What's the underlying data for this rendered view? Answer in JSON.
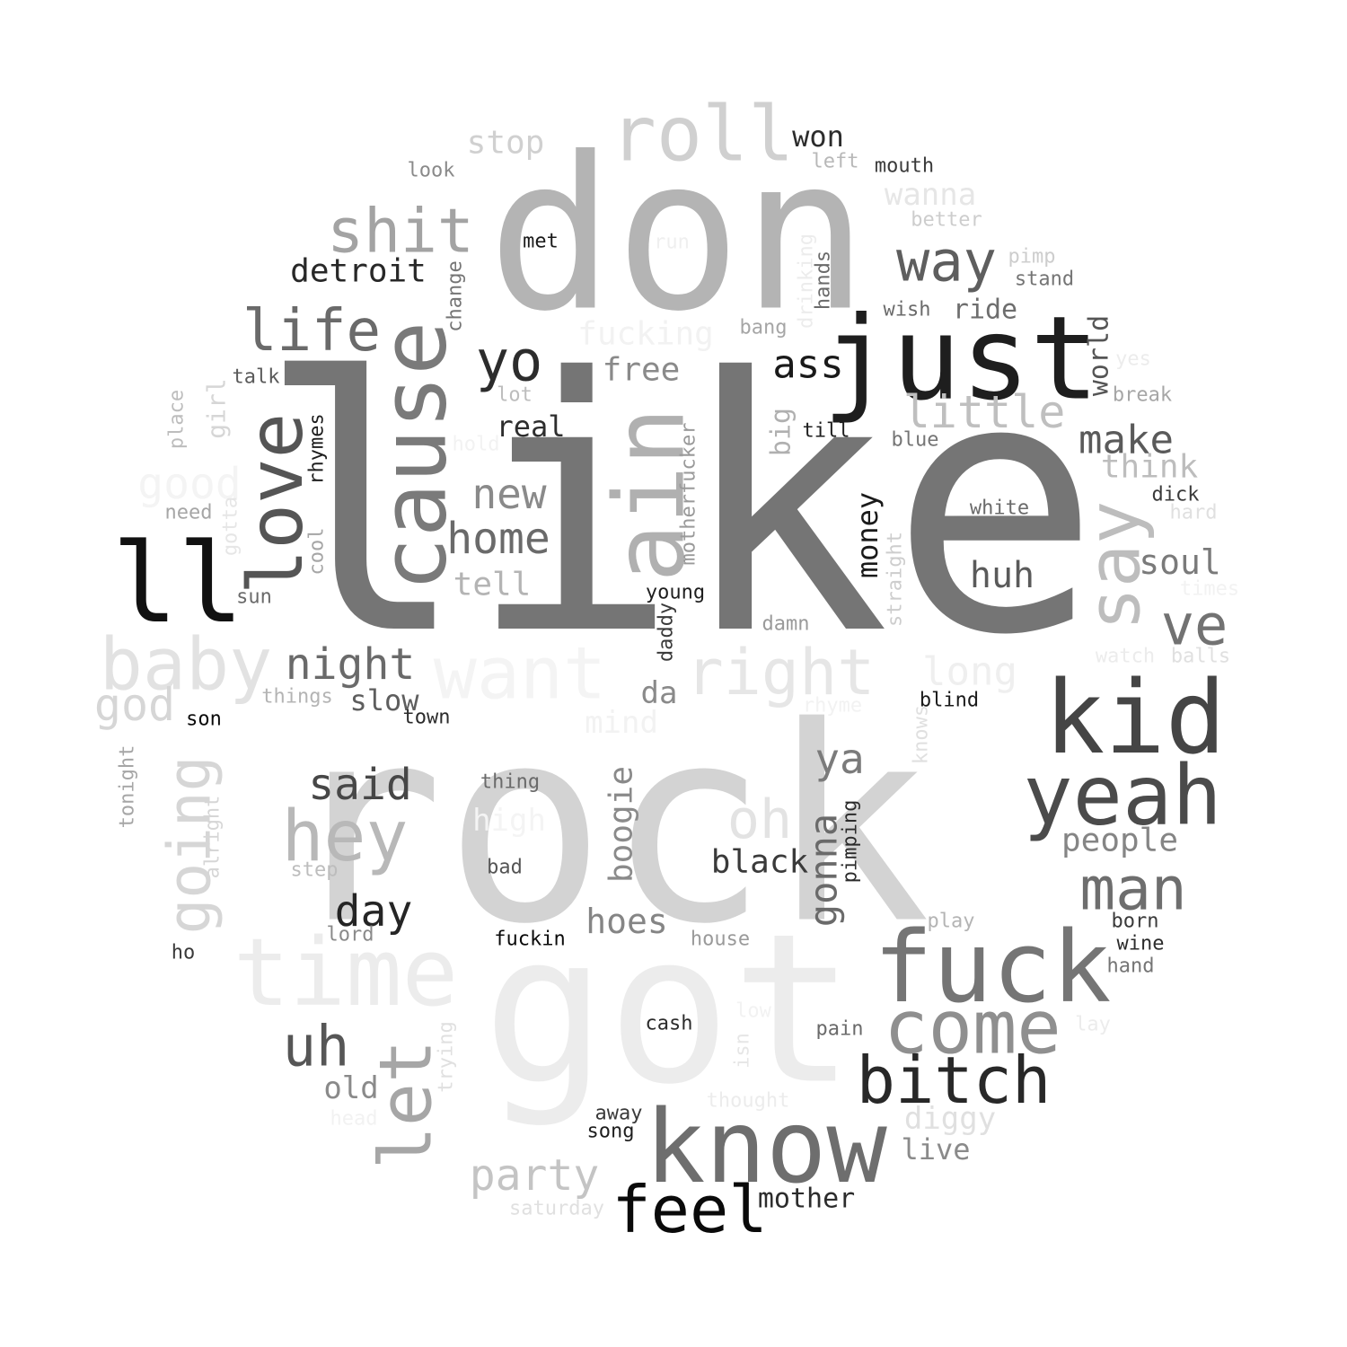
{
  "words": [
    {
      "text": "like",
      "color": "#757575",
      "rotate": false
    },
    {
      "text": "rock",
      "color": "#d3d3d3",
      "rotate": false
    },
    {
      "text": "got",
      "color": "#ececec",
      "rotate": false
    },
    {
      "text": "don",
      "color": "#b4b4b4",
      "rotate": false
    },
    {
      "text": "just",
      "color": "#1e1e1e",
      "rotate": false
    },
    {
      "text": "cause",
      "color": "#7a7a7a",
      "rotate": true
    },
    {
      "text": "ain",
      "color": "#b0b0b0",
      "rotate": true
    },
    {
      "text": "know",
      "color": "#6e6e6e",
      "rotate": false
    },
    {
      "text": "fuck",
      "color": "#757575",
      "rotate": false
    },
    {
      "text": "kid",
      "color": "#454545",
      "rotate": false
    },
    {
      "text": "yeah",
      "color": "#4b4b4b",
      "rotate": false
    },
    {
      "text": "ll",
      "color": "#111111",
      "rotate": false
    },
    {
      "text": "time",
      "color": "#ececec",
      "rotate": false
    },
    {
      "text": "roll",
      "color": "#d0d0d0",
      "rotate": false
    },
    {
      "text": "come",
      "color": "#8f8f8f",
      "rotate": false
    },
    {
      "text": "baby",
      "color": "#e2e2e2",
      "rotate": false
    },
    {
      "text": "want",
      "color": "#f4f4f4",
      "rotate": false
    },
    {
      "text": "love",
      "color": "#555555",
      "rotate": true
    },
    {
      "text": "let",
      "color": "#a6a6a6",
      "rotate": true
    },
    {
      "text": "say",
      "color": "#bdbdbd",
      "rotate": true
    },
    {
      "text": "bitch",
      "color": "#282828",
      "rotate": false
    },
    {
      "text": "feel",
      "color": "#0a0a0a",
      "rotate": false
    },
    {
      "text": "hey",
      "color": "#b8b8b8",
      "rotate": false
    },
    {
      "text": "right",
      "color": "#e6e6e6",
      "rotate": false
    },
    {
      "text": "shit",
      "color": "#a3a3a3",
      "rotate": false
    },
    {
      "text": "life",
      "color": "#6a6a6a",
      "rotate": false
    },
    {
      "text": "way",
      "color": "#5e5e5e",
      "rotate": false
    },
    {
      "text": "yo",
      "color": "#2c2c2c",
      "rotate": false
    },
    {
      "text": "going",
      "color": "#d6d6d6",
      "rotate": true
    },
    {
      "text": "man",
      "color": "#6e6e6e",
      "rotate": false
    },
    {
      "text": "uh",
      "color": "#565656",
      "rotate": false
    },
    {
      "text": "ve",
      "color": "#727272",
      "rotate": false
    },
    {
      "text": "little",
      "color": "#bfbfbf",
      "rotate": false
    },
    {
      "text": "party",
      "color": "#c4c4c4",
      "rotate": false
    },
    {
      "text": "said",
      "color": "#474747",
      "rotate": false
    },
    {
      "text": "night",
      "color": "#6a6a6a",
      "rotate": false
    },
    {
      "text": "home",
      "color": "#6a6a6a",
      "rotate": false
    },
    {
      "text": "new",
      "color": "#8a8a8a",
      "rotate": false
    },
    {
      "text": "oh",
      "color": "#e3e3e3",
      "rotate": false
    },
    {
      "text": "day",
      "color": "#252525",
      "rotate": false
    },
    {
      "text": "good",
      "color": "#f4f4f4",
      "rotate": false
    },
    {
      "text": "long",
      "color": "#efefef",
      "rotate": false
    },
    {
      "text": "gonna",
      "color": "#6a6a6a",
      "rotate": true
    },
    {
      "text": "ya",
      "color": "#7b7b7b",
      "rotate": false
    },
    {
      "text": "god",
      "color": "#d6d6d6",
      "rotate": false
    },
    {
      "text": "hoes",
      "color": "#858585",
      "rotate": false
    },
    {
      "text": "make",
      "color": "#5a5a5a",
      "rotate": false
    },
    {
      "text": "people",
      "color": "#858585",
      "rotate": false
    },
    {
      "text": "huh",
      "color": "#5a5a5a",
      "rotate": false
    },
    {
      "text": "soul",
      "color": "#7a7a7a",
      "rotate": false
    },
    {
      "text": "stop",
      "color": "#d0d0d0",
      "rotate": false
    },
    {
      "text": "ass",
      "color": "#1a1a1a",
      "rotate": false
    },
    {
      "text": "detroit",
      "color": "#282828",
      "rotate": false
    },
    {
      "text": "black",
      "color": "#3a3a3a",
      "rotate": false
    },
    {
      "text": "fucking",
      "color": "#f2f2f2",
      "rotate": false
    },
    {
      "text": "free",
      "color": "#8a8a8a",
      "rotate": false
    },
    {
      "text": "think",
      "color": "#bdbdbd",
      "rotate": false
    },
    {
      "text": "boogie",
      "color": "#8a8a8a",
      "rotate": true
    },
    {
      "text": "money",
      "color": "#1a1a1a",
      "rotate": true
    },
    {
      "text": "wanna",
      "color": "#e6e6e6",
      "rotate": false
    },
    {
      "text": "world",
      "color": "#555555",
      "rotate": true
    },
    {
      "text": "tell",
      "color": "#b4b4b4",
      "rotate": false
    },
    {
      "text": "real",
      "color": "#2e2e2e",
      "rotate": false
    },
    {
      "text": "diggy",
      "color": "#e0e0e0",
      "rotate": false
    },
    {
      "text": "mind",
      "color": "#f2f2f2",
      "rotate": false
    },
    {
      "text": "slow",
      "color": "#5e5e5e",
      "rotate": false
    },
    {
      "text": "da",
      "color": "#8a8a8a",
      "rotate": false
    },
    {
      "text": "live",
      "color": "#8a8a8a",
      "rotate": false
    },
    {
      "text": "old",
      "color": "#8a8a8a",
      "rotate": false
    },
    {
      "text": "won",
      "color": "#2c2c2c",
      "rotate": false
    },
    {
      "text": "mother",
      "color": "#2c2c2c",
      "rotate": false
    },
    {
      "text": "ride",
      "color": "#6e6e6e",
      "rotate": false
    },
    {
      "text": "big",
      "color": "#b0b0b0",
      "rotate": true
    },
    {
      "text": "high",
      "color": "#f4f4f4",
      "rotate": false
    },
    {
      "text": "girl",
      "color": "#d6d6d6",
      "rotate": true
    },
    {
      "text": "look",
      "color": "#8a8a8a",
      "rotate": false
    },
    {
      "text": "left",
      "color": "#b8b8b8",
      "rotate": false
    },
    {
      "text": "mouth",
      "color": "#3a3a3a",
      "rotate": false
    },
    {
      "text": "better",
      "color": "#cdcdcd",
      "rotate": false
    },
    {
      "text": "met",
      "color": "#1a1a1a",
      "rotate": false
    },
    {
      "text": "run",
      "color": "#efefef",
      "rotate": false
    },
    {
      "text": "pimp",
      "color": "#cdcdcd",
      "rotate": false
    },
    {
      "text": "stand",
      "color": "#757575",
      "rotate": false
    },
    {
      "text": "wish",
      "color": "#6a6a6a",
      "rotate": false
    },
    {
      "text": "bang",
      "color": "#a6a6a6",
      "rotate": false
    },
    {
      "text": "change",
      "color": "#757575",
      "rotate": true
    },
    {
      "text": "drinking",
      "color": "#ececec",
      "rotate": true
    },
    {
      "text": "hands",
      "color": "#6a6a6a",
      "rotate": true
    },
    {
      "text": "talk",
      "color": "#5a5a5a",
      "rotate": false
    },
    {
      "text": "lot",
      "color": "#bdbdbd",
      "rotate": false
    },
    {
      "text": "yes",
      "color": "#ececec",
      "rotate": false
    },
    {
      "text": "break",
      "color": "#a6a6a6",
      "rotate": false
    },
    {
      "text": "place",
      "color": "#bdbdbd",
      "rotate": true
    },
    {
      "text": "hold",
      "color": "#f2f2f2",
      "rotate": false
    },
    {
      "text": "till",
      "color": "#1e1e1e",
      "rotate": false
    },
    {
      "text": "blue",
      "color": "#757575",
      "rotate": false
    },
    {
      "text": "rhymes",
      "color": "#1e1e1e",
      "rotate": true
    },
    {
      "text": "motherfucker",
      "color": "#9a9a9a",
      "rotate": true
    },
    {
      "text": "white",
      "color": "#6a6a6a",
      "rotate": false
    },
    {
      "text": "dick",
      "color": "#3a3a3a",
      "rotate": false
    },
    {
      "text": "need",
      "color": "#a6a6a6",
      "rotate": false
    },
    {
      "text": "gotta",
      "color": "#e6e6e6",
      "rotate": true
    },
    {
      "text": "hard",
      "color": "#e0e0e0",
      "rotate": false
    },
    {
      "text": "cool",
      "color": "#a6a6a6",
      "rotate": true
    },
    {
      "text": "straight",
      "color": "#cdcdcd",
      "rotate": true
    },
    {
      "text": "times",
      "color": "#f2f2f2",
      "rotate": false
    },
    {
      "text": "sun",
      "color": "#6a6a6a",
      "rotate": false
    },
    {
      "text": "young",
      "color": "#1e1e1e",
      "rotate": false
    },
    {
      "text": "damn",
      "color": "#9a9a9a",
      "rotate": false
    },
    {
      "text": "daddy",
      "color": "#3a3a3a",
      "rotate": true
    },
    {
      "text": "watch",
      "color": "#ececec",
      "rotate": false
    },
    {
      "text": "balls",
      "color": "#e0e0e0",
      "rotate": false
    },
    {
      "text": "things",
      "color": "#b4b4b4",
      "rotate": false
    },
    {
      "text": "son",
      "color": "#0a0a0a",
      "rotate": false
    },
    {
      "text": "town",
      "color": "#2c2c2c",
      "rotate": false
    },
    {
      "text": "rhyme",
      "color": "#f2f2f2",
      "rotate": false
    },
    {
      "text": "blind",
      "color": "#1a1a1a",
      "rotate": false
    },
    {
      "text": "knows",
      "color": "#e0e0e0",
      "rotate": true
    },
    {
      "text": "tonight",
      "color": "#a6a6a6",
      "rotate": true
    },
    {
      "text": "thing",
      "color": "#6a6a6a",
      "rotate": false
    },
    {
      "text": "alright",
      "color": "#d6d6d6",
      "rotate": true
    },
    {
      "text": "pimping",
      "color": "#2c2c2c",
      "rotate": true
    },
    {
      "text": "step",
      "color": "#bdbdbd",
      "rotate": false
    },
    {
      "text": "bad",
      "color": "#555555",
      "rotate": false
    },
    {
      "text": "play",
      "color": "#b4b4b4",
      "rotate": false
    },
    {
      "text": "born",
      "color": "#3a3a3a",
      "rotate": false
    },
    {
      "text": "wine",
      "color": "#2c2c2c",
      "rotate": false
    },
    {
      "text": "hand",
      "color": "#757575",
      "rotate": false
    },
    {
      "text": "ho",
      "color": "#3a3a3a",
      "rotate": false
    },
    {
      "text": "lord",
      "color": "#8a8a8a",
      "rotate": false
    },
    {
      "text": "fuckin",
      "color": "#0a0a0a",
      "rotate": false
    },
    {
      "text": "house",
      "color": "#9a9a9a",
      "rotate": false
    },
    {
      "text": "cash",
      "color": "#2c2c2c",
      "rotate": false
    },
    {
      "text": "low",
      "color": "#f2f2f2",
      "rotate": false
    },
    {
      "text": "pain",
      "color": "#6a6a6a",
      "rotate": false
    },
    {
      "text": "lay",
      "color": "#ececec",
      "rotate": false
    },
    {
      "text": "trying",
      "color": "#e0e0e0",
      "rotate": true
    },
    {
      "text": "isn",
      "color": "#e6e6e6",
      "rotate": true
    },
    {
      "text": "head",
      "color": "#f2f2f2",
      "rotate": false
    },
    {
      "text": "thought",
      "color": "#ececec",
      "rotate": false
    },
    {
      "text": "away",
      "color": "#3a3a3a",
      "rotate": false
    },
    {
      "text": "song",
      "color": "#1e1e1e",
      "rotate": false
    },
    {
      "text": "saturday",
      "color": "#e0e0e0",
      "rotate": false
    }
  ]
}
